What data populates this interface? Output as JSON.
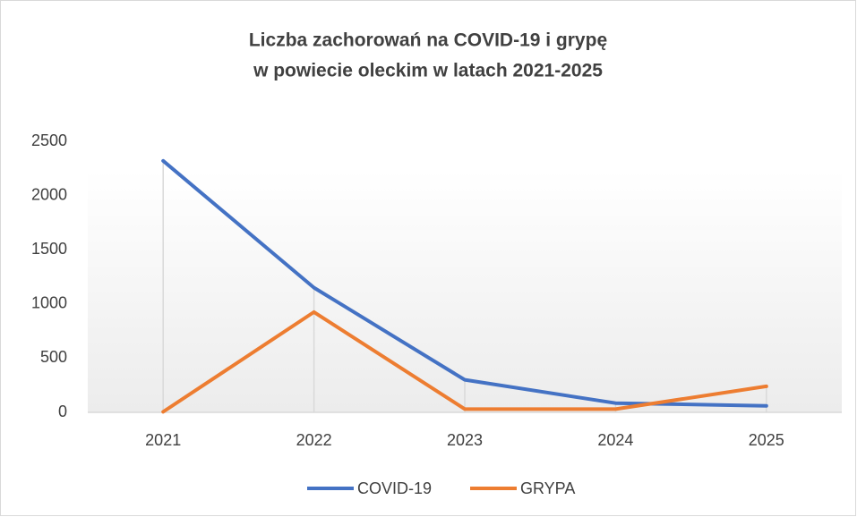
{
  "chart_data": {
    "type": "line",
    "title": [
      "Liczba zachorowań na COVID-19 i grypę",
      "w powiecie oleckim w latach 2021-2025"
    ],
    "categories": [
      "2021",
      "2022",
      "2023",
      "2024",
      "2025"
    ],
    "series": [
      {
        "name": "COVID-19",
        "color": "#4472c4",
        "values": [
          2320,
          1150,
          300,
          85,
          60
        ]
      },
      {
        "name": "GRYPA",
        "color": "#ed7d31",
        "values": [
          5,
          925,
          30,
          30,
          240
        ]
      }
    ],
    "ylim": [
      0,
      2500
    ],
    "yticks": [
      0,
      500,
      1000,
      1500,
      2000,
      2500
    ],
    "legend": "bottom"
  }
}
